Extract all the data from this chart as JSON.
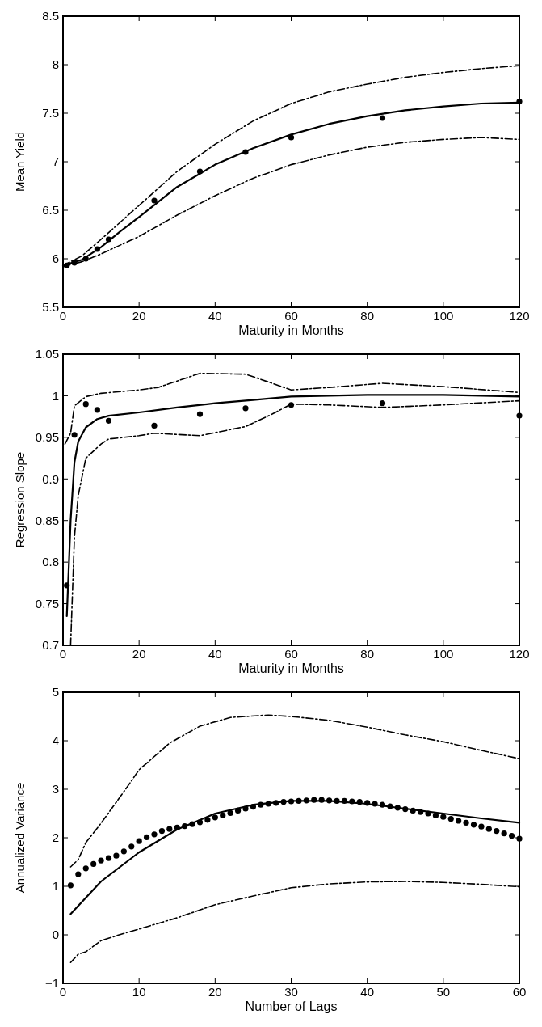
{
  "chart_data": [
    {
      "type": "line",
      "xlabel": "Maturity in Months",
      "ylabel": "Mean Yield",
      "xlim": [
        0,
        120
      ],
      "ylim": [
        5.5,
        8.5
      ],
      "xticks": [
        0,
        20,
        40,
        60,
        80,
        100,
        120
      ],
      "yticks": [
        5.5,
        6,
        6.5,
        7,
        7.5,
        8,
        8.5
      ],
      "series": [
        {
          "type": "scatter",
          "color": "#000000",
          "marker": "circle",
          "x": [
            1,
            3,
            6,
            9,
            12,
            24,
            36,
            48,
            60,
            84,
            120
          ],
          "values": [
            5.93,
            5.96,
            6.0,
            6.1,
            6.2,
            6.6,
            6.9,
            7.1,
            7.25,
            7.45,
            7.62
          ]
        },
        {
          "color": "#000000",
          "line_style": "solid",
          "x": [
            0,
            5,
            10,
            15,
            20,
            30,
            40,
            50,
            60,
            70,
            80,
            90,
            100,
            110,
            120
          ],
          "values": [
            5.93,
            5.99,
            6.12,
            6.28,
            6.43,
            6.74,
            6.97,
            7.14,
            7.28,
            7.39,
            7.47,
            7.53,
            7.57,
            7.6,
            7.61
          ]
        },
        {
          "color": "#000000",
          "line_style": "dashed",
          "x": [
            0,
            5,
            10,
            20,
            30,
            40,
            50,
            60,
            70,
            80,
            90,
            100,
            110,
            120
          ],
          "values": [
            5.93,
            6.03,
            6.2,
            6.55,
            6.9,
            7.18,
            7.42,
            7.6,
            7.72,
            7.8,
            7.87,
            7.92,
            7.96,
            7.99
          ]
        },
        {
          "color": "#000000",
          "line_style": "dashed",
          "x": [
            0,
            5,
            10,
            20,
            30,
            40,
            50,
            60,
            70,
            80,
            90,
            100,
            110,
            120
          ],
          "values": [
            5.92,
            5.97,
            6.05,
            6.23,
            6.45,
            6.65,
            6.83,
            6.97,
            7.07,
            7.15,
            7.2,
            7.23,
            7.25,
            7.23
          ]
        }
      ]
    },
    {
      "type": "line",
      "xlabel": "Maturity in Months",
      "ylabel": "Regression Slope",
      "xlim": [
        0,
        120
      ],
      "ylim": [
        0.7,
        1.05
      ],
      "xticks": [
        0,
        20,
        40,
        60,
        80,
        100,
        120
      ],
      "yticks": [
        0.7,
        0.75,
        0.8,
        0.85,
        0.9,
        0.95,
        1,
        1.05
      ],
      "series": [
        {
          "type": "scatter",
          "color": "#000000",
          "marker": "circle",
          "x": [
            1,
            3,
            6,
            9,
            12,
            24,
            36,
            48,
            60,
            84,
            120
          ],
          "values": [
            0.772,
            0.953,
            0.99,
            0.983,
            0.97,
            0.964,
            0.978,
            0.985,
            0.989,
            0.991,
            0.976
          ]
        },
        {
          "color": "#000000",
          "line_style": "solid",
          "x": [
            1,
            2,
            3,
            4,
            6,
            9,
            12,
            20,
            30,
            40,
            50,
            60,
            70,
            80,
            90,
            100,
            120
          ],
          "values": [
            0.735,
            0.85,
            0.92,
            0.945,
            0.962,
            0.972,
            0.976,
            0.98,
            0.986,
            0.991,
            0.995,
            0.999,
            1.0,
            1.001,
            1.001,
            1.001,
            0.999
          ]
        },
        {
          "color": "#000000",
          "line_style": "dashed",
          "x": [
            0.5,
            2,
            3,
            6,
            10,
            20,
            25,
            36,
            48,
            55,
            60,
            70,
            84,
            100,
            120
          ],
          "values": [
            0.942,
            0.955,
            0.988,
            0.999,
            1.003,
            1.007,
            1.01,
            1.027,
            1.026,
            1.015,
            1.007,
            1.01,
            1.015,
            1.011,
            1.004
          ]
        },
        {
          "color": "#000000",
          "line_style": "dashed",
          "x": [
            2,
            3,
            4,
            6,
            10,
            12,
            20,
            24,
            36,
            48,
            55,
            60,
            70,
            84,
            100,
            120
          ],
          "values": [
            0.7,
            0.83,
            0.88,
            0.925,
            0.942,
            0.948,
            0.952,
            0.955,
            0.952,
            0.963,
            0.978,
            0.99,
            0.989,
            0.986,
            0.989,
            0.994
          ]
        }
      ]
    },
    {
      "type": "line",
      "xlabel": "Number of Lags",
      "ylabel": "Annualized Variance",
      "xlim": [
        0,
        60
      ],
      "ylim": [
        -1,
        5
      ],
      "xticks": [
        0,
        10,
        20,
        30,
        40,
        50,
        60
      ],
      "yticks": [
        {
          "value": -1,
          "label": "−1"
        },
        0,
        1,
        2,
        3,
        4,
        5
      ],
      "series": [
        {
          "type": "scatter",
          "color": "#000000",
          "marker": "circle",
          "x": [
            1,
            2,
            3,
            4,
            5,
            6,
            7,
            8,
            9,
            10,
            11,
            12,
            13,
            14,
            15,
            16,
            17,
            18,
            19,
            20,
            21,
            22,
            23,
            24,
            25,
            26,
            27,
            28,
            29,
            30,
            31,
            32,
            33,
            34,
            35,
            36,
            37,
            38,
            39,
            40,
            41,
            42,
            43,
            44,
            45,
            46,
            47,
            48,
            49,
            50,
            51,
            52,
            53,
            54,
            55,
            56,
            57,
            58,
            59,
            60
          ],
          "values": [
            1.02,
            1.25,
            1.37,
            1.46,
            1.53,
            1.58,
            1.63,
            1.72,
            1.82,
            1.93,
            2.01,
            2.07,
            2.14,
            2.18,
            2.21,
            2.24,
            2.28,
            2.32,
            2.37,
            2.42,
            2.46,
            2.51,
            2.56,
            2.6,
            2.64,
            2.68,
            2.7,
            2.72,
            2.74,
            2.75,
            2.76,
            2.77,
            2.78,
            2.78,
            2.77,
            2.76,
            2.76,
            2.75,
            2.74,
            2.72,
            2.7,
            2.68,
            2.65,
            2.62,
            2.59,
            2.56,
            2.53,
            2.5,
            2.46,
            2.43,
            2.39,
            2.35,
            2.31,
            2.27,
            2.23,
            2.18,
            2.14,
            2.09,
            2.04,
            1.98
          ]
        },
        {
          "color": "#000000",
          "line_style": "solid",
          "x": [
            1,
            5,
            10,
            15,
            20,
            25,
            30,
            35,
            40,
            45,
            50,
            55,
            60
          ],
          "values": [
            0.43,
            1.1,
            1.7,
            2.17,
            2.5,
            2.68,
            2.76,
            2.76,
            2.7,
            2.6,
            2.5,
            2.4,
            2.31
          ]
        },
        {
          "color": "#000000",
          "line_style": "dashed",
          "x": [
            1,
            2,
            3,
            5,
            8,
            10,
            14,
            18,
            22,
            27,
            30,
            35,
            40,
            45,
            50,
            55,
            60
          ],
          "values": [
            1.4,
            1.55,
            1.9,
            2.3,
            2.95,
            3.4,
            3.95,
            4.3,
            4.48,
            4.53,
            4.5,
            4.42,
            4.28,
            4.12,
            3.98,
            3.8,
            3.63
          ]
        },
        {
          "color": "#000000",
          "line_style": "dashed",
          "x": [
            1,
            2,
            3,
            5,
            8,
            10,
            15,
            20,
            25,
            30,
            35,
            40,
            45,
            50,
            55,
            60
          ],
          "values": [
            -0.57,
            -0.4,
            -0.35,
            -0.12,
            0.03,
            0.12,
            0.35,
            0.62,
            0.8,
            0.97,
            1.05,
            1.09,
            1.1,
            1.08,
            1.04,
            0.99
          ]
        }
      ]
    }
  ]
}
